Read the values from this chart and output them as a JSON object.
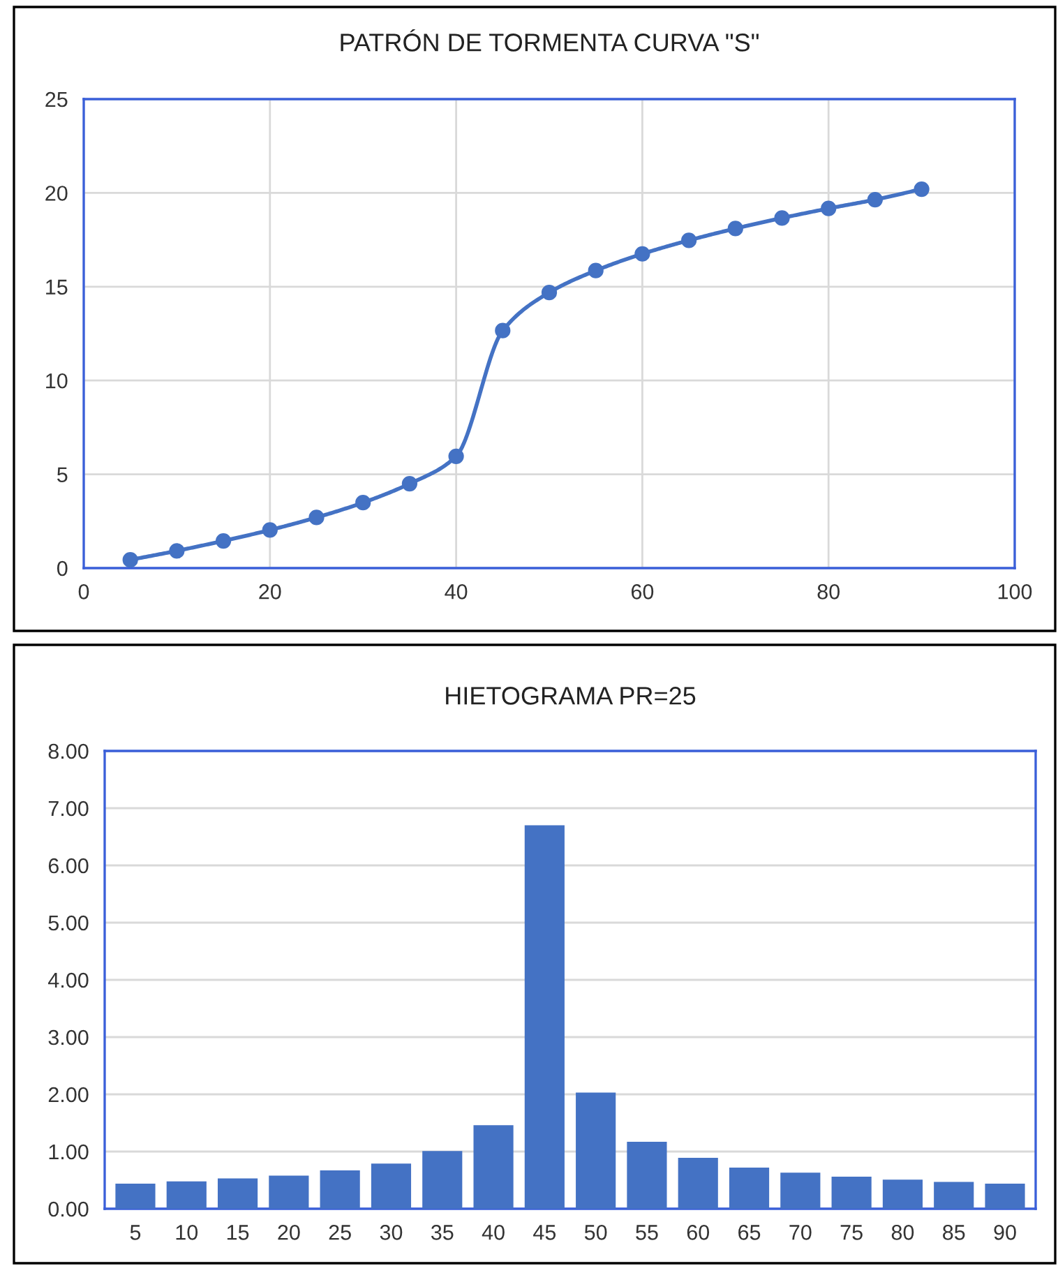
{
  "chart_data": [
    {
      "type": "line",
      "title": "PATRÓN DE TORMENTA CURVA \"S\"",
      "x": [
        5,
        10,
        15,
        20,
        25,
        30,
        35,
        40,
        45,
        50,
        55,
        60,
        65,
        70,
        75,
        80,
        85,
        90
      ],
      "series": [
        {
          "color": "#4472c4",
          "values": [
            0.44,
            0.92,
            1.45,
            2.03,
            2.7,
            3.49,
            4.5,
            5.96,
            12.66,
            14.69,
            15.86,
            16.75,
            17.47,
            18.1,
            18.66,
            19.17,
            19.64,
            20.2
          ]
        }
      ],
      "xlim": [
        0,
        100
      ],
      "ylim": [
        0,
        25
      ],
      "xticks": [
        0,
        20,
        40,
        60,
        80,
        100
      ],
      "yticks": [
        0,
        5,
        10,
        15,
        20,
        25
      ],
      "grid": true,
      "marker": "circle",
      "line_style": "solid"
    },
    {
      "type": "bar",
      "title": "HIETOGRAMA PR=25",
      "categories": [
        "5",
        "10",
        "15",
        "20",
        "25",
        "30",
        "35",
        "40",
        "45",
        "50",
        "55",
        "60",
        "65",
        "70",
        "75",
        "80",
        "85",
        "90"
      ],
      "series": [
        {
          "color": "#4472c4",
          "values": [
            0.44,
            0.48,
            0.53,
            0.58,
            0.67,
            0.79,
            1.01,
            1.46,
            6.7,
            2.03,
            1.17,
            0.89,
            0.72,
            0.63,
            0.56,
            0.51,
            0.47,
            0.44
          ]
        }
      ],
      "ylim": [
        0,
        8
      ],
      "yticks": [
        {
          "value": 0,
          "label": "0.00"
        },
        {
          "value": 1,
          "label": "1.00"
        },
        {
          "value": 2,
          "label": "2.00"
        },
        {
          "value": 3,
          "label": "3.00"
        },
        {
          "value": 4,
          "label": "4.00"
        },
        {
          "value": 5,
          "label": "5.00"
        },
        {
          "value": 6,
          "label": "6.00"
        },
        {
          "value": 7,
          "label": "7.00"
        },
        {
          "value": 8,
          "label": "8.00"
        }
      ],
      "grid": "y"
    }
  ]
}
